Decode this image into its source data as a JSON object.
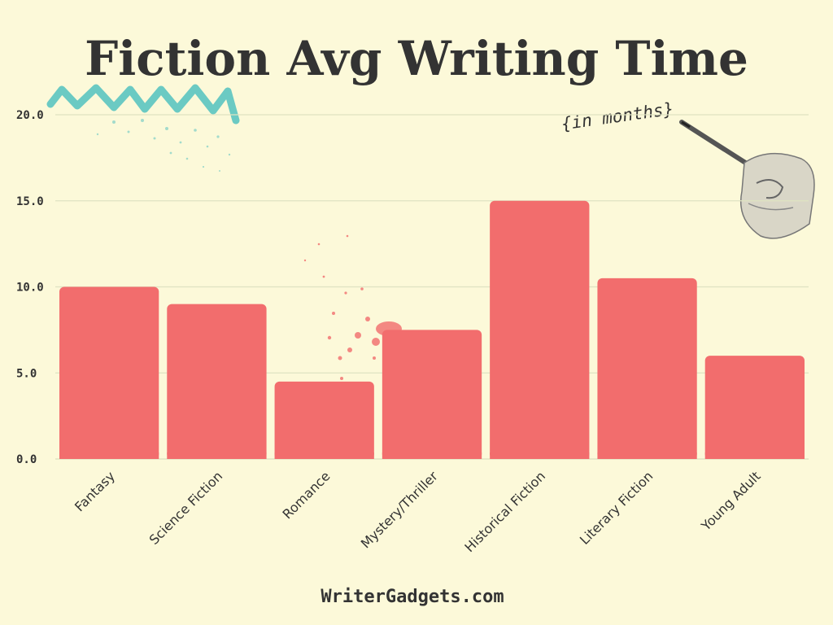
{
  "chart_data": {
    "type": "bar",
    "title": "Fiction Avg Writing Time",
    "subtitle": "{in months}",
    "categories": [
      "Fantasy",
      "Science Fiction",
      "Romance",
      "Mystery/Thriller",
      "Historical Fiction",
      "Literary Fiction",
      "Young Adult"
    ],
    "values": [
      10.0,
      9.0,
      4.5,
      7.5,
      15.0,
      10.5,
      6.0
    ],
    "yticks": [
      "0.0",
      "5.0",
      "10.0",
      "15.0",
      "20.0"
    ],
    "ylim": [
      0,
      20
    ],
    "grid": true,
    "bar_color": "#f26d6d",
    "xlabel": "",
    "ylabel": ""
  },
  "footer": "WriterGadgets.com",
  "colors": {
    "background": "#fcf9d9",
    "text": "#333333",
    "accent_teal": "#5bc4c0",
    "splatter": "#f26d6d"
  },
  "decorations": [
    "teal-zigzag-scribble",
    "red-ink-splatter",
    "hand-holding-pen"
  ]
}
